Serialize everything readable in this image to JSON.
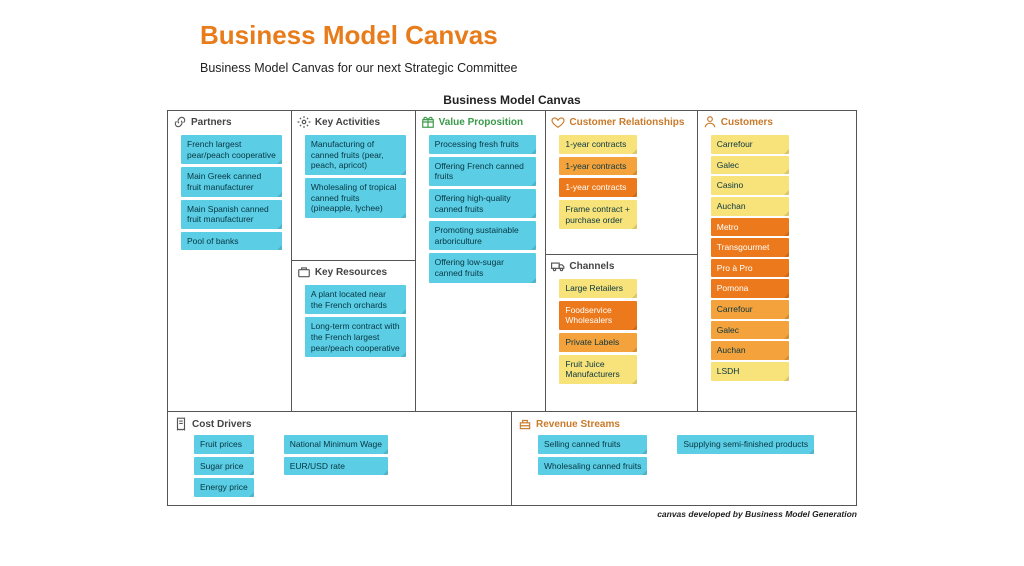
{
  "page": {
    "title": "Business Model Canvas",
    "subtitle": "Business Model Canvas for our next Strategic Committee",
    "canvas_title": "Business Model Canvas",
    "attribution": "canvas developed by Business Model Generation"
  },
  "colors": {
    "title": "#e87c1a",
    "note_cyan": "#5bcde4",
    "note_yellow": "#f8e27a",
    "note_orange": "#f4a23c",
    "note_dark_orange": "#ec7a1c",
    "border": "#555555",
    "accent_green": "#3a9a4a",
    "accent_orange": "#c97a2a"
  },
  "blocks": {
    "partners": {
      "label": "Partners",
      "items": [
        "French largest pear/peach cooperative",
        "Main Greek canned fruit manufacturer",
        "Main Spanish canned fruit manufacturer",
        "Pool of banks"
      ]
    },
    "key_activities": {
      "label": "Key Activities",
      "items": [
        "Manufacturing of canned fruits (pear, peach, apricot)",
        "Wholesaling of tropical canned fruits (pineapple, lychee)"
      ]
    },
    "key_resources": {
      "label": "Key Resources",
      "items": [
        "A plant located near the French orchards",
        "Long-term contract with the French largest pear/peach cooperative"
      ]
    },
    "value_proposition": {
      "label": "Value Proposition",
      "items": [
        "Processing fresh fruits",
        "Offering French canned fruits",
        "Offering high-quality canned fruits",
        "Promoting sustainable arboriculture",
        "Offering low-sugar canned fruits"
      ]
    },
    "customer_relationships": {
      "label": "Customer Relationships",
      "items": [
        {
          "text": "1-year contracts",
          "color": "yellow"
        },
        {
          "text": "1-year contracts",
          "color": "orange"
        },
        {
          "text": "1-year contracts",
          "color": "dorange"
        },
        {
          "text": "Frame contract + purchase order",
          "color": "yellow"
        }
      ]
    },
    "channels": {
      "label": "Channels",
      "items": [
        {
          "text": "Large Retailers",
          "color": "yellow"
        },
        {
          "text": "Foodservice Wholesalers",
          "color": "dorange"
        },
        {
          "text": "Private Labels",
          "color": "orange"
        },
        {
          "text": "Fruit Juice Manufacturers",
          "color": "yellow"
        }
      ]
    },
    "customers": {
      "label": "Customers",
      "items": [
        {
          "text": "Carrefour",
          "color": "yellow"
        },
        {
          "text": "Galec",
          "color": "yellow"
        },
        {
          "text": "Casino",
          "color": "yellow"
        },
        {
          "text": "Auchan",
          "color": "yellow"
        },
        {
          "text": "Metro",
          "color": "dorange"
        },
        {
          "text": "Transgourmet",
          "color": "dorange"
        },
        {
          "text": "Pro à Pro",
          "color": "dorange"
        },
        {
          "text": "Pomona",
          "color": "dorange"
        },
        {
          "text": "Carrefour",
          "color": "orange"
        },
        {
          "text": "Galec",
          "color": "orange"
        },
        {
          "text": "Auchan",
          "color": "orange"
        },
        {
          "text": "LSDH",
          "color": "yellow"
        }
      ]
    },
    "cost_drivers": {
      "label": "Cost Drivers",
      "col1": [
        "Fruit prices",
        "Sugar price",
        "Energy price"
      ],
      "col2": [
        "National Minimum Wage",
        "EUR/USD rate"
      ]
    },
    "revenue_streams": {
      "label": "Revenue Streams",
      "col1": [
        "Selling canned fruits",
        "Wholesaling canned fruits"
      ],
      "col2": [
        "Supplying semi-finished products"
      ]
    }
  }
}
